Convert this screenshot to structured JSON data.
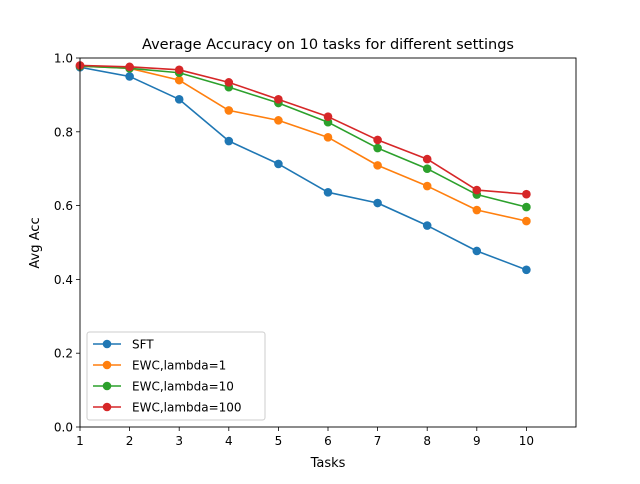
{
  "chart_data": {
    "type": "line",
    "title": "Average Accuracy on 10 tasks for different settings",
    "xlabel": "Tasks",
    "ylabel": "Avg Acc",
    "x": [
      1,
      2,
      3,
      4,
      5,
      6,
      7,
      8,
      9,
      10
    ],
    "xlim": [
      1,
      11
    ],
    "ylim": [
      0.0,
      1.0
    ],
    "xticks": [
      1,
      2,
      3,
      4,
      5,
      6,
      7,
      8,
      9,
      10
    ],
    "xtick_labels": [
      "1",
      "2",
      "3",
      "4",
      "5",
      "6",
      "7",
      "8",
      "9",
      "10"
    ],
    "yticks": [
      0.0,
      0.2,
      0.4,
      0.6,
      0.8,
      1.0
    ],
    "ytick_labels": [
      "0.0",
      "0.2",
      "0.4",
      "0.6",
      "0.8",
      "1.0"
    ],
    "grid": false,
    "legend_position": "lower-left",
    "series": [
      {
        "name": "SFT",
        "color": "#1f77b4",
        "marker": "circle",
        "values": [
          0.975,
          0.95,
          0.888,
          0.775,
          0.713,
          0.636,
          0.607,
          0.546,
          0.477,
          0.426
        ]
      },
      {
        "name": "EWC,lambda=1",
        "color": "#ff7f0e",
        "marker": "circle",
        "values": [
          0.978,
          0.972,
          0.94,
          0.858,
          0.831,
          0.785,
          0.709,
          0.653,
          0.588,
          0.558
        ]
      },
      {
        "name": "EWC,lambda=10",
        "color": "#2ca02c",
        "marker": "circle",
        "values": [
          0.978,
          0.972,
          0.96,
          0.921,
          0.878,
          0.826,
          0.756,
          0.7,
          0.63,
          0.596
        ]
      },
      {
        "name": "EWC,lambda=100",
        "color": "#d62728",
        "marker": "circle",
        "values": [
          0.98,
          0.976,
          0.968,
          0.934,
          0.888,
          0.841,
          0.778,
          0.726,
          0.642,
          0.631
        ]
      }
    ]
  }
}
